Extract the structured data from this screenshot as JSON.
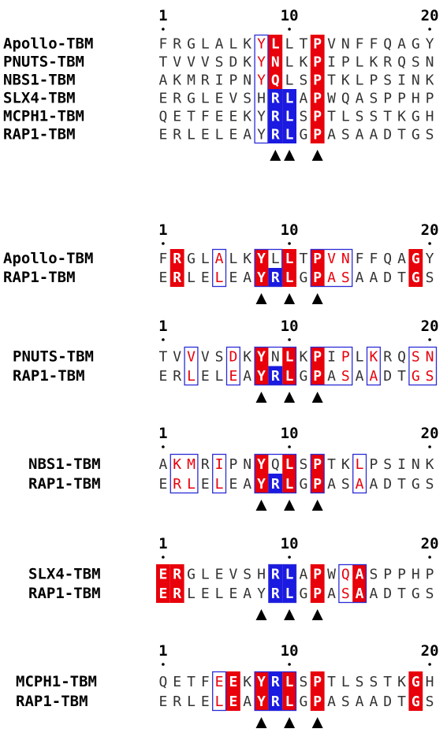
{
  "colors": {
    "identical_bg": "#e8000b",
    "similar_bg": "#1a1ae0",
    "box_border": "#2b2bd6",
    "similar_text": "#e8000b",
    "normal_text": "#333333",
    "highlight_text": "#ffffff"
  },
  "panels": [
    {
      "ruler": [
        {
          "pos": 1,
          "label": "1"
        },
        {
          "pos": 10,
          "label": "10"
        },
        {
          "pos": 20,
          "label": "20"
        }
      ],
      "rows": [
        {
          "name": "Apollo-TBM",
          "seq": "FRGLALKYLLTPVNFFQAGY"
        },
        {
          "name": "PNUTS-TBM",
          "seq": "TVVVSDKYNLKPIPLKRQSN"
        },
        {
          "name": "NBS1-TBM",
          "seq": "AKMRIPNYQLSPTKLPSINK"
        },
        {
          "name": "SLX4-TBM",
          "seq": "ERGLEVSHRLAPWQASPPHP"
        },
        {
          "name": "MCPH1-TBM",
          "seq": "QETFEEKYRLSPTLSSTKGH"
        },
        {
          "name": "RAP1-TBM",
          "seq": "ERLELEAYRLGPASAADTGS"
        }
      ],
      "fills": [
        {
          "col": 9,
          "from": 0,
          "to": 5,
          "kind": "identical"
        },
        {
          "col": 12,
          "from": 0,
          "to": 5,
          "kind": "identical"
        },
        {
          "col": 9,
          "from": 3,
          "to": 5,
          "kind": "similar"
        },
        {
          "col": 10,
          "from": 3,
          "to": 5,
          "kind": "similar"
        }
      ],
      "boxes": [
        {
          "from": 8,
          "to": 8
        }
      ],
      "red_text": [
        {
          "row": 0,
          "col": 8
        },
        {
          "row": 1,
          "col": 8
        },
        {
          "row": 2,
          "col": 8
        }
      ],
      "markers": [
        9,
        10,
        12
      ]
    },
    {
      "ruler": [
        {
          "pos": 1,
          "label": "1"
        },
        {
          "pos": 10,
          "label": "10"
        },
        {
          "pos": 20,
          "label": "20"
        }
      ],
      "rows": [
        {
          "name": "Apollo-TBM",
          "seq": "FRGLALKYLLTPVNFFQAGY"
        },
        {
          "name": "RAP1-TBM",
          "seq": "ERLELEAYRLGPASAADTGS"
        }
      ],
      "fills": [
        {
          "col": 2,
          "from": 0,
          "to": 1,
          "kind": "identical"
        },
        {
          "col": 8,
          "from": 0,
          "to": 1,
          "kind": "identical"
        },
        {
          "col": 10,
          "from": 0,
          "to": 1,
          "kind": "identical"
        },
        {
          "col": 12,
          "from": 0,
          "to": 1,
          "kind": "identical"
        },
        {
          "col": 19,
          "from": 0,
          "to": 1,
          "kind": "identical"
        },
        {
          "col": 9,
          "from": 1,
          "to": 1,
          "kind": "similar"
        }
      ],
      "boxes": [
        {
          "from": 5,
          "to": 5
        },
        {
          "from": 8,
          "to": 9
        },
        {
          "from": 12,
          "to": 14
        }
      ],
      "red_text": [
        {
          "row": 0,
          "col": 5
        },
        {
          "row": 1,
          "col": 5
        },
        {
          "row": 0,
          "col": 13
        },
        {
          "row": 1,
          "col": 13
        },
        {
          "row": 0,
          "col": 14
        },
        {
          "row": 1,
          "col": 14
        }
      ],
      "markers": [
        8,
        10,
        12
      ]
    },
    {
      "ruler": [
        {
          "pos": 1,
          "label": "1"
        },
        {
          "pos": 10,
          "label": "10"
        },
        {
          "pos": 20,
          "label": "20"
        }
      ],
      "rows": [
        {
          "name": "PNUTS-TBM",
          "seq": "TVVVSDKYNLKPIPLKRQSN"
        },
        {
          "name": "RAP1-TBM",
          "seq": "ERLELEAYRLGPASAADTGS"
        }
      ],
      "fills": [
        {
          "col": 8,
          "from": 0,
          "to": 1,
          "kind": "identical"
        },
        {
          "col": 10,
          "from": 0,
          "to": 1,
          "kind": "identical"
        },
        {
          "col": 12,
          "from": 0,
          "to": 1,
          "kind": "identical"
        },
        {
          "col": 9,
          "from": 1,
          "to": 1,
          "kind": "similar"
        }
      ],
      "boxes": [
        {
          "from": 3,
          "to": 3
        },
        {
          "from": 6,
          "to": 6
        },
        {
          "from": 8,
          "to": 10
        },
        {
          "from": 12,
          "to": 14
        },
        {
          "from": 16,
          "to": 16
        },
        {
          "from": 19,
          "to": 20
        }
      ],
      "red_text": [
        {
          "row": 0,
          "col": 3
        },
        {
          "row": 1,
          "col": 3
        },
        {
          "row": 0,
          "col": 6
        },
        {
          "row": 1,
          "col": 6
        },
        {
          "row": 0,
          "col": 14
        },
        {
          "row": 1,
          "col": 14
        },
        {
          "row": 0,
          "col": 16
        },
        {
          "row": 1,
          "col": 16
        },
        {
          "row": 0,
          "col": 19
        },
        {
          "row": 1,
          "col": 19
        },
        {
          "row": 0,
          "col": 20
        },
        {
          "row": 1,
          "col": 20
        }
      ],
      "markers": [
        8,
        10,
        12
      ]
    },
    {
      "ruler": [
        {
          "pos": 1,
          "label": "1"
        },
        {
          "pos": 10,
          "label": "10"
        },
        {
          "pos": 20,
          "label": "20"
        }
      ],
      "rows": [
        {
          "name": "NBS1-TBM",
          "seq": "AKMRIPNYQLSPTKLPSINK"
        },
        {
          "name": "RAP1-TBM",
          "seq": "ERLELEAYRLGPASAADTGS"
        }
      ],
      "fills": [
        {
          "col": 8,
          "from": 0,
          "to": 1,
          "kind": "identical"
        },
        {
          "col": 10,
          "from": 0,
          "to": 1,
          "kind": "identical"
        },
        {
          "col": 12,
          "from": 0,
          "to": 1,
          "kind": "identical"
        },
        {
          "col": 9,
          "from": 1,
          "to": 1,
          "kind": "similar"
        }
      ],
      "boxes": [
        {
          "from": 2,
          "to": 3
        },
        {
          "from": 5,
          "to": 5
        },
        {
          "from": 8,
          "to": 10
        },
        {
          "from": 12,
          "to": 12
        },
        {
          "from": 15,
          "to": 15
        }
      ],
      "red_text": [
        {
          "row": 0,
          "col": 2
        },
        {
          "row": 1,
          "col": 2
        },
        {
          "row": 0,
          "col": 3
        },
        {
          "row": 1,
          "col": 3
        },
        {
          "row": 0,
          "col": 5
        },
        {
          "row": 1,
          "col": 5
        },
        {
          "row": 0,
          "col": 15
        },
        {
          "row": 1,
          "col": 15
        }
      ],
      "markers": [
        8,
        10,
        12
      ]
    },
    {
      "ruler": [
        {
          "pos": 1,
          "label": "1"
        },
        {
          "pos": 10,
          "label": "10"
        },
        {
          "pos": 20,
          "label": "20"
        }
      ],
      "rows": [
        {
          "name": "SLX4-TBM",
          "seq": "ERGLEVSHRLAPWQASPPHP"
        },
        {
          "name": "RAP1-TBM",
          "seq": "ERLELEAYRLGPASAADTGS"
        }
      ],
      "fills": [
        {
          "col": 1,
          "from": 0,
          "to": 1,
          "kind": "identical"
        },
        {
          "col": 2,
          "from": 0,
          "to": 1,
          "kind": "identical"
        },
        {
          "col": 12,
          "from": 0,
          "to": 1,
          "kind": "identical"
        },
        {
          "col": 15,
          "from": 0,
          "to": 1,
          "kind": "identical"
        },
        {
          "col": 9,
          "from": 0,
          "to": 1,
          "kind": "similar"
        },
        {
          "col": 10,
          "from": 0,
          "to": 1,
          "kind": "similar"
        }
      ],
      "boxes": [
        {
          "from": 9,
          "to": 10
        },
        {
          "from": 14,
          "to": 15
        }
      ],
      "red_text": [
        {
          "row": 0,
          "col": 14
        },
        {
          "row": 1,
          "col": 14
        }
      ],
      "markers": [
        8,
        10,
        12
      ]
    },
    {
      "ruler": [
        {
          "pos": 1,
          "label": "1"
        },
        {
          "pos": 10,
          "label": "10"
        },
        {
          "pos": 20,
          "label": "20"
        }
      ],
      "rows": [
        {
          "name": "MCPH1-TBM",
          "seq": "QETFEEKYRLSPTLSSTKGH"
        },
        {
          "name": "RAP1-TBM",
          "seq": "ERLELEAYRLGPASAADTGS"
        }
      ],
      "fills": [
        {
          "col": 6,
          "from": 0,
          "to": 1,
          "kind": "identical"
        },
        {
          "col": 8,
          "from": 0,
          "to": 1,
          "kind": "identical"
        },
        {
          "col": 10,
          "from": 0,
          "to": 1,
          "kind": "identical"
        },
        {
          "col": 12,
          "from": 0,
          "to": 1,
          "kind": "identical"
        },
        {
          "col": 19,
          "from": 0,
          "to": 1,
          "kind": "identical"
        },
        {
          "col": 9,
          "from": 0,
          "to": 1,
          "kind": "similar"
        }
      ],
      "boxes": [
        {
          "from": 5,
          "to": 5
        },
        {
          "from": 8,
          "to": 10
        }
      ],
      "red_text": [
        {
          "row": 0,
          "col": 5
        },
        {
          "row": 1,
          "col": 5
        }
      ],
      "markers": [
        8,
        10,
        12
      ]
    }
  ]
}
